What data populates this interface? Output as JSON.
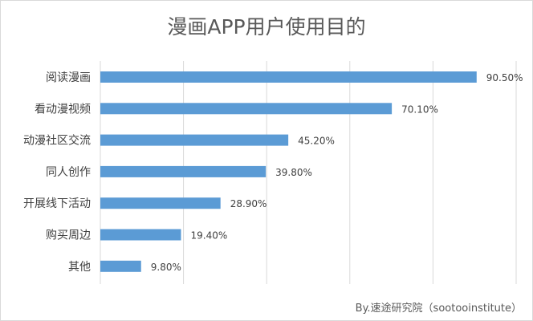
{
  "chart_data": {
    "type": "bar",
    "orientation": "horizontal",
    "title": "漫画APP用户使用目的",
    "categories": [
      "阅读漫画",
      "看动漫视频",
      "动漫社区交流",
      "同人创作",
      "开展线下活动",
      "购买周边",
      "其他"
    ],
    "values": [
      90.5,
      70.1,
      45.2,
      39.8,
      28.9,
      19.4,
      9.8
    ],
    "data_labels": [
      "90.50%",
      "70.10%",
      "45.20%",
      "39.80%",
      "28.90%",
      "19.40%",
      "9.80%"
    ],
    "xlim": [
      0,
      100
    ],
    "x_grid_step": 20,
    "grid": true,
    "legend": "none",
    "bar_color": "#5b9bd5",
    "source": "By.速途研究院（sootooinstitute）"
  }
}
